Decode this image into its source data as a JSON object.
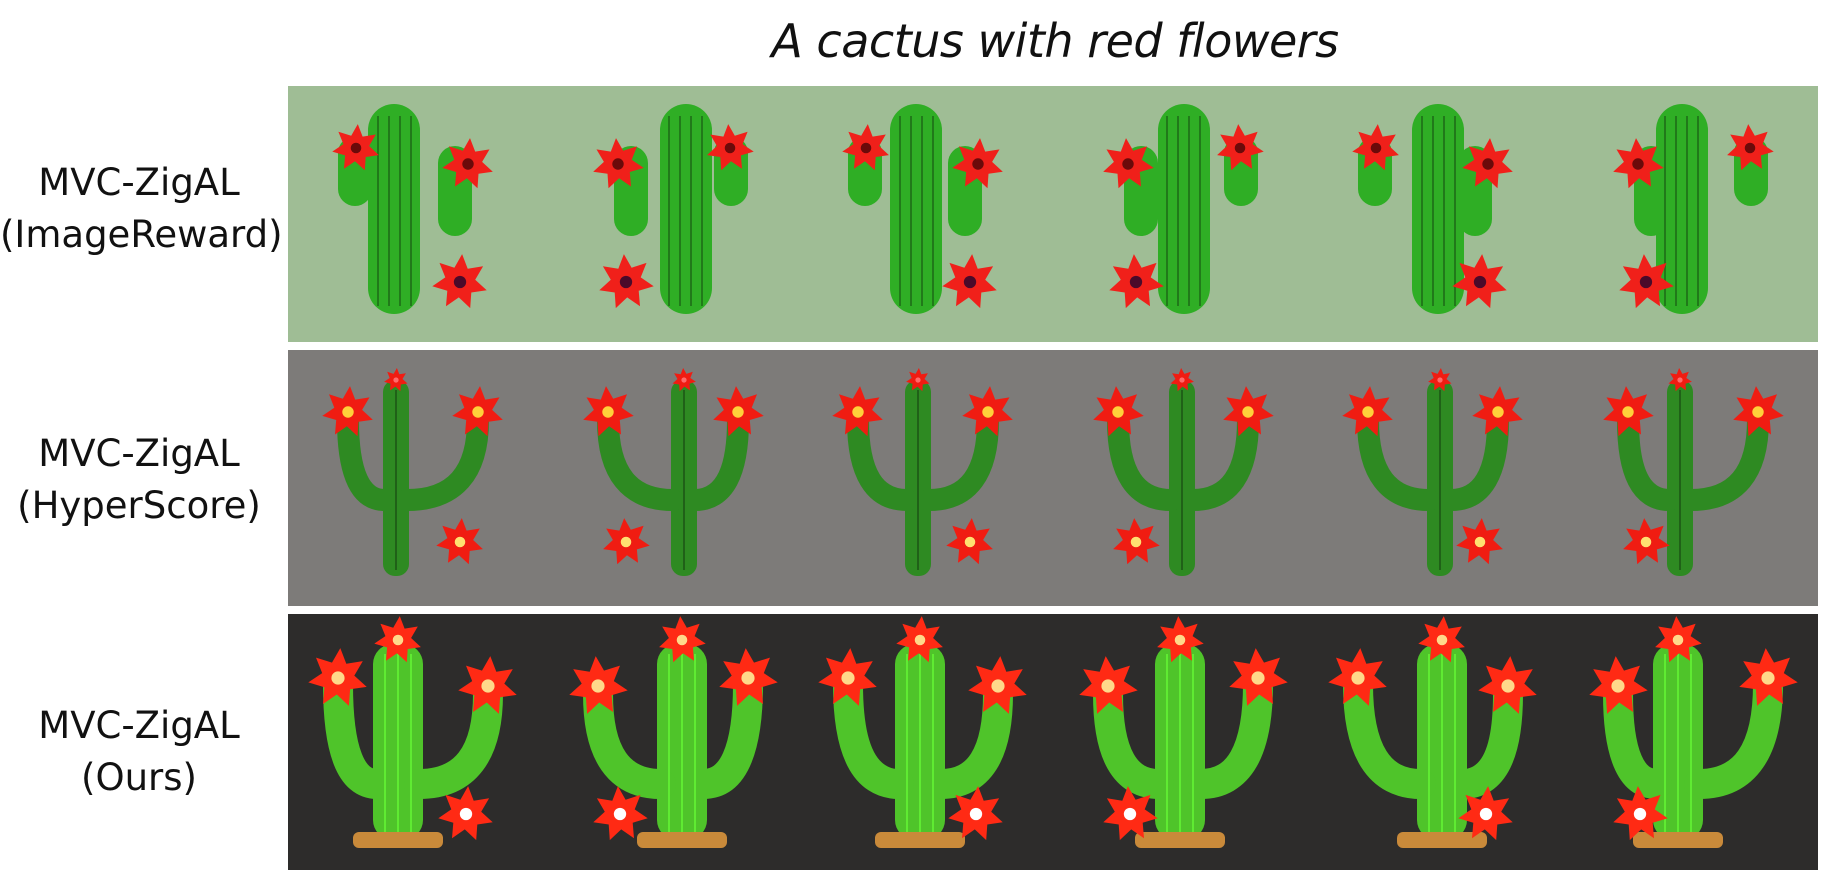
{
  "title": "A cactus with red flowers",
  "rows": [
    {
      "label_line1": "MVC-ZigAL",
      "label_line2": "(ImageReward)",
      "background": "#9fbd95",
      "cactus_color": "#2fae25",
      "flower_color": "#f0201a",
      "style": "flat",
      "views": 6
    },
    {
      "label_line1": "MVC-ZigAL",
      "label_line2": "(HyperScore)",
      "background": "#7d7b79",
      "cactus_color": "#2e8a22",
      "flower_color": "#f01c12",
      "style": "trident",
      "views": 6
    },
    {
      "label_line1": "MVC-ZigAL",
      "label_line2": "(Ours)",
      "background": "#2d2c2b",
      "cactus_color": "#4fc42a",
      "flower_color": "#ff2a14",
      "style": "full",
      "views": 6
    }
  ]
}
